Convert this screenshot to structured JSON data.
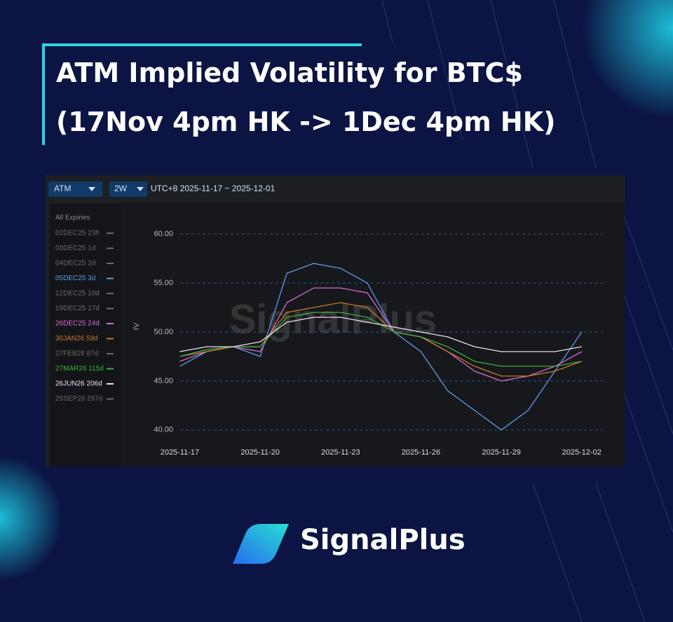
{
  "header": {
    "title_lines": [
      "ATM Implied Volatility for BTC$",
      "(17Nov 4pm HK -> 1Dec 4pm HK)"
    ]
  },
  "toolbar": {
    "mode": "ATM",
    "range": "2W",
    "period": "UTC+8 2025-11-17 ~ 2025-12-01"
  },
  "chart_data": {
    "type": "line",
    "legend_title": "All Expiries",
    "ylabel": "IV",
    "watermark": "SignalPlus",
    "x": [
      "2025-11-17",
      "2025-11-18",
      "2025-11-19",
      "2025-11-20",
      "2025-11-21",
      "2025-11-22",
      "2025-11-23",
      "2025-11-24",
      "2025-11-25",
      "2025-11-26",
      "2025-11-27",
      "2025-11-28",
      "2025-11-29",
      "2025-11-30",
      "2025-12-01",
      "2025-12-02"
    ],
    "xlim": [
      "2025-11-15",
      "2025-12-03"
    ],
    "xticks": [
      "2025-11-17",
      "2025-11-20",
      "2025-11-23",
      "2025-11-26",
      "2025-11-29",
      "2025-12-02"
    ],
    "ylim": [
      38.7,
      62.8
    ],
    "yticks": [
      {
        "value": 40,
        "label": "40.00"
      },
      {
        "value": 45,
        "label": "45.00"
      },
      {
        "value": 50,
        "label": "50.00"
      },
      {
        "value": 55,
        "label": "55.00"
      },
      {
        "value": 60,
        "label": "60.00"
      }
    ],
    "grid": true,
    "series": [
      {
        "name": "02DEC25 23h",
        "color": "#6b6b6b",
        "hidden": true
      },
      {
        "name": "03DEC25 1d",
        "color": "#6b6b6b",
        "hidden": true
      },
      {
        "name": "04DEC25 2d",
        "color": "#6b6b6b",
        "hidden": true
      },
      {
        "name": "05DEC25 3d",
        "color": "#5b9be8",
        "values": [
          46.5,
          48,
          48.5,
          47.5,
          56,
          57,
          56.5,
          55,
          50,
          48,
          44,
          42,
          40,
          42,
          46,
          50
        ]
      },
      {
        "name": "12DEC25 10d",
        "color": "#6b6b6b",
        "hidden": true
      },
      {
        "name": "19DEC25 17d",
        "color": "#6b6b6b",
        "hidden": true
      },
      {
        "name": "26DEC25 24d",
        "color": "#d36bd8",
        "values": [
          47,
          48,
          48.5,
          48,
          53,
          54.5,
          54.5,
          54,
          50,
          49.5,
          48,
          46,
          45,
          45.5,
          46.5,
          48
        ]
      },
      {
        "name": "30JAN26 59d",
        "color": "#c8782a",
        "values": [
          47.5,
          48,
          48.5,
          48.5,
          52,
          52.5,
          53,
          52.5,
          50,
          49.5,
          48,
          46.5,
          45.5,
          45.5,
          46,
          47
        ]
      },
      {
        "name": "27FEB26 87d",
        "color": "#6b6b6b",
        "hidden": true
      },
      {
        "name": "27MAR26 115d",
        "color": "#3fae3f",
        "values": [
          47.5,
          48.2,
          48.5,
          48.5,
          51.5,
          52,
          52,
          51.5,
          50,
          49.5,
          48.5,
          47,
          46.5,
          46.5,
          46.5,
          47
        ]
      },
      {
        "name": "26JUN26 206d",
        "color": "#f3dcf3",
        "values": [
          48,
          48.5,
          48.5,
          49,
          51,
          51.5,
          51.5,
          51,
          50.5,
          50,
          49.5,
          48.5,
          48,
          48,
          48,
          48.5
        ]
      },
      {
        "name": "25SEP26 297d",
        "color": "#6b6b6b",
        "hidden": true
      }
    ]
  },
  "footer": {
    "brand": "SignalPlus"
  }
}
